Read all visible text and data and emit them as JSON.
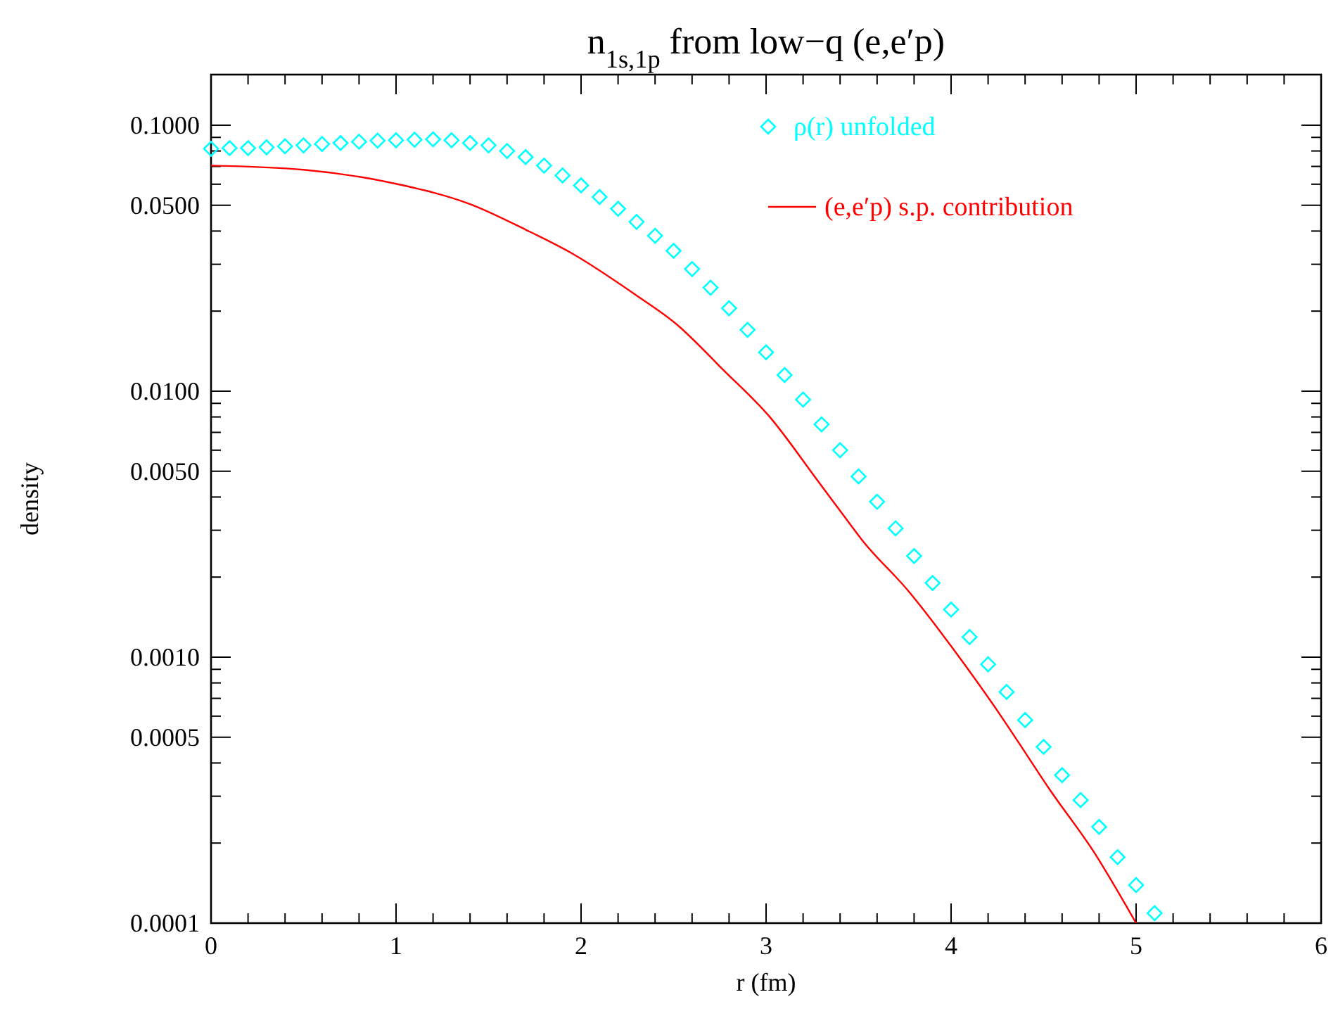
{
  "chart_data": {
    "type": "line",
    "title": "n$_{1s,1p}$ from low−q (e,e′p)",
    "xlabel": "r (fm)",
    "ylabel": "density",
    "log": "y",
    "legend": "top right",
    "grid": false,
    "xlim": [
      0,
      6
    ],
    "ylim": [
      0.0001,
      0.155
    ],
    "xticks": [
      0,
      {
        "value": 0.2,
        "label": null
      },
      {
        "value": 0.4,
        "label": null
      },
      {
        "value": 0.6,
        "label": null
      },
      {
        "value": 0.8,
        "label": null
      },
      1,
      {
        "value": 1.2,
        "label": null
      },
      {
        "value": 1.4,
        "label": null
      },
      {
        "value": 1.6,
        "label": null
      },
      {
        "value": 1.8,
        "label": null
      },
      2,
      {
        "value": 2.2,
        "label": null
      },
      {
        "value": 2.4,
        "label": null
      },
      {
        "value": 2.6,
        "label": null
      },
      {
        "value": 2.8,
        "label": null
      },
      3,
      {
        "value": 3.2,
        "label": null
      },
      {
        "value": 3.4,
        "label": null
      },
      {
        "value": 3.6,
        "label": null
      },
      {
        "value": 3.8,
        "label": null
      },
      4,
      {
        "value": 4.2,
        "label": null
      },
      {
        "value": 4.4,
        "label": null
      },
      {
        "value": 4.6,
        "label": null
      },
      {
        "value": 4.8,
        "label": null
      },
      5,
      {
        "value": 5.2,
        "label": null
      },
      {
        "value": 5.4,
        "label": null
      },
      {
        "value": 5.6,
        "label": null
      },
      {
        "value": 5.8,
        "label": null
      },
      6
    ],
    "yticks": [
      {
        "value": 0.0001,
        "label": "0.0001"
      },
      {
        "value": 0.0002,
        "label": null
      },
      {
        "value": 0.0003,
        "label": null
      },
      {
        "value": 0.0004,
        "label": null
      },
      {
        "value": 0.0005,
        "label": "0.0005"
      },
      {
        "value": 0.0006,
        "label": null
      },
      {
        "value": 0.0007,
        "label": null
      },
      {
        "value": 0.0008,
        "label": null
      },
      {
        "value": 0.0009,
        "label": null
      },
      {
        "value": 0.001,
        "label": "0.0010"
      },
      {
        "value": 0.002,
        "label": null
      },
      {
        "value": 0.003,
        "label": null
      },
      {
        "value": 0.004,
        "label": null
      },
      {
        "value": 0.005,
        "label": "0.0050"
      },
      {
        "value": 0.006,
        "label": null
      },
      {
        "value": 0.007,
        "label": null
      },
      {
        "value": 0.008,
        "label": null
      },
      {
        "value": 0.009,
        "label": null
      },
      {
        "value": 0.01,
        "label": "0.0100"
      },
      {
        "value": 0.02,
        "label": null
      },
      {
        "value": 0.03,
        "label": null
      },
      {
        "value": 0.04,
        "label": null
      },
      {
        "value": 0.05,
        "label": "0.0500"
      },
      {
        "value": 0.06,
        "label": null
      },
      {
        "value": 0.07,
        "label": null
      },
      {
        "value": 0.08,
        "label": null
      },
      {
        "value": 0.09,
        "label": null
      },
      {
        "value": 0.1,
        "label": "0.1000"
      }
    ],
    "series": [
      {
        "name": "ρ(r) unfolded",
        "type": "scatter",
        "marker": "diamond",
        "color": "#00ffff",
        "x": [
          0,
          0.1,
          0.2,
          0.3,
          0.4,
          0.5,
          0.6,
          0.7,
          0.8,
          0.9,
          1,
          1.1,
          1.2,
          1.3,
          1.4,
          1.5,
          1.6,
          1.7,
          1.8,
          1.9,
          2,
          2.1,
          2.2,
          2.3,
          2.4,
          2.5,
          2.6,
          2.7,
          2.8,
          2.9,
          3,
          3.1,
          3.2,
          3.3,
          3.4,
          3.5,
          3.6,
          3.7,
          3.8,
          3.9,
          4,
          4.1,
          4.2,
          4.3,
          4.4,
          4.5,
          4.6,
          4.7,
          4.8,
          4.9,
          5,
          5.1
        ],
        "values": [
          0.0816,
          0.082,
          0.082,
          0.0826,
          0.0833,
          0.084,
          0.085,
          0.0857,
          0.0867,
          0.0875,
          0.0878,
          0.0882,
          0.0885,
          0.0878,
          0.0857,
          0.084,
          0.08,
          0.0759,
          0.0705,
          0.0647,
          0.0594,
          0.0537,
          0.0485,
          0.0433,
          0.0384,
          0.0337,
          0.0288,
          0.0245,
          0.0205,
          0.017,
          0.014,
          0.0115,
          0.0093,
          0.0075,
          0.006,
          0.00478,
          0.00384,
          0.00305,
          0.0024,
          0.0019,
          0.00151,
          0.00119,
          0.00094,
          0.00074,
          0.00058,
          0.00046,
          0.00036,
          0.00029,
          0.00023,
          0.000177,
          0.000139,
          0.000109
        ]
      },
      {
        "name": "(e,e′p) s.p. contribution",
        "line_style": "solid",
        "color": "#ff0000",
        "x": [
          0,
          0.5,
          1,
          1.4,
          1.7,
          1.95,
          2.3,
          2.51,
          2.77,
          3.02,
          3.27,
          3.42,
          3.52,
          3.77,
          3.88,
          4,
          4.27,
          4.41,
          4.53,
          4.77,
          5
        ],
        "values": [
          0.0705,
          0.068,
          0.0602,
          0.0505,
          0.0405,
          0.033,
          0.0229,
          0.018,
          0.012,
          0.008,
          0.0047,
          0.0034,
          0.00275,
          0.00177,
          0.00142,
          0.0011,
          0.0006,
          0.000428,
          0.00032,
          0.000186,
          0.0001
        ]
      }
    ]
  }
}
